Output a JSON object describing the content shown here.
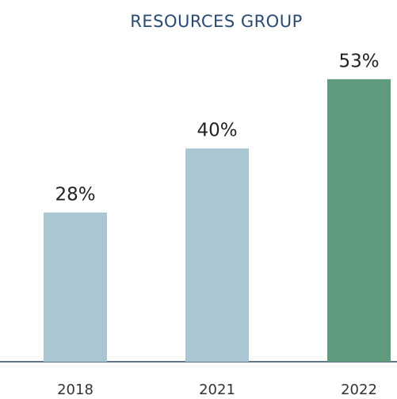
{
  "chart_data": {
    "type": "bar",
    "title": "RESOURCES GROUP",
    "categories": [
      "2018",
      "2021",
      "2022"
    ],
    "values": [
      28,
      40,
      53
    ],
    "value_labels": [
      "28%",
      "40%",
      "53%"
    ],
    "colors": [
      "#abc6d3",
      "#abc6d3",
      "#5f9a7d"
    ]
  }
}
